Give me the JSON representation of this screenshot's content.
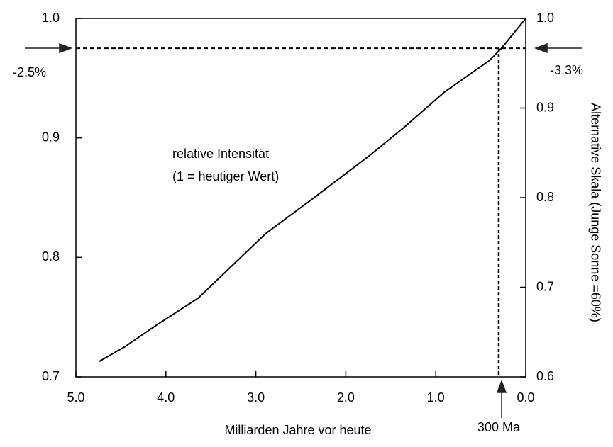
{
  "chart_data": {
    "type": "line",
    "x_label": "Milliarden Jahre vor heute",
    "y2_label": "Alternative Skala (Junge Sonne =60%)",
    "annotations": [
      {
        "text": "relative Intensität"
      },
      {
        "text": "(1 = heutiger Wert)"
      }
    ],
    "reference_y": 0.975,
    "reference_y_labels": [
      "-2.5%",
      "-3.3%"
    ],
    "reference_x": 0.3,
    "reference_x_label": "300 Ma",
    "x": [
      4.74,
      4.46,
      4.11,
      3.64,
      2.89,
      2.37,
      1.74,
      1.35,
      0.91,
      0.4,
      0.27,
      0
    ],
    "values": [
      0.713,
      0.725,
      0.743,
      0.766,
      0.82,
      0.849,
      0.885,
      0.909,
      0.938,
      0.965,
      0.975,
      1.0
    ],
    "color": "#000000",
    "xlim": [
      5,
      0
    ],
    "xticks": [
      {
        "value": 5,
        "label": "5.0"
      },
      {
        "value": 4,
        "label": "4.0"
      },
      {
        "value": 3,
        "label": "3.0"
      },
      {
        "value": 2,
        "label": "2.0"
      },
      {
        "value": 1,
        "label": "1.0"
      },
      {
        "value": 0,
        "label": "0.0"
      }
    ],
    "ylim": [
      0.7,
      1.0
    ],
    "yticks": [
      0.7,
      0.8,
      0.9,
      {
        "value": 1,
        "label": "1.0"
      }
    ],
    "y2lim": [
      0.6,
      1.0
    ],
    "y2ticks": [
      0.6,
      0.7,
      0.8,
      0.9,
      {
        "value": 1,
        "label": "1.0"
      }
    ]
  }
}
